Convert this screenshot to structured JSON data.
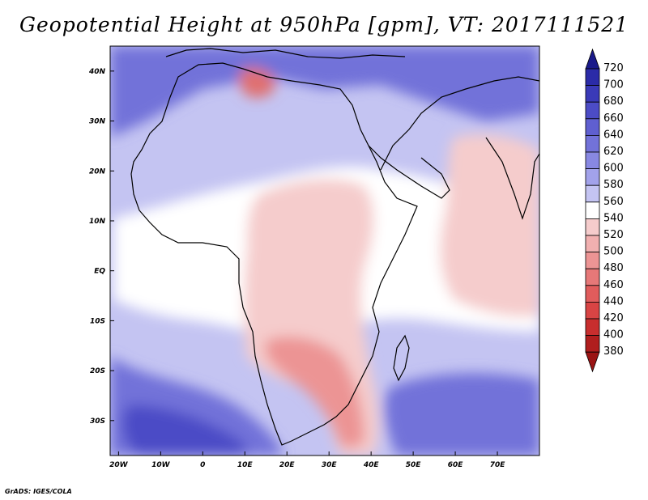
{
  "title": "Geopotential Height at 950hPa [gpm], VT: 2017111521",
  "credit": "GrADS: IGES/COLA",
  "map": {
    "lon_range": [
      -22,
      80
    ],
    "lat_range": [
      -37,
      45
    ],
    "lat_labels": [
      "40N",
      "30N",
      "20N",
      "10N",
      "EQ",
      "10S",
      "20S",
      "30S"
    ],
    "lat_values": [
      40,
      30,
      20,
      10,
      0,
      -10,
      -20,
      -30
    ],
    "lon_labels": [
      "20W",
      "10W",
      "0",
      "10E",
      "20E",
      "30E",
      "40E",
      "50E",
      "60E",
      "70E"
    ],
    "lon_values": [
      -20,
      -10,
      0,
      10,
      20,
      30,
      40,
      50,
      60,
      70
    ]
  },
  "colorbar": {
    "levels": [
      720,
      700,
      680,
      660,
      640,
      620,
      600,
      580,
      560,
      540,
      520,
      500,
      480,
      460,
      440,
      420,
      400,
      380
    ],
    "colors": [
      "#1f1f96",
      "#2b2ba8",
      "#3a3ab8",
      "#4c4cc6",
      "#5f5fd0",
      "#7272d9",
      "#8888e2",
      "#a2a2ea",
      "#c4c4f2",
      "#ffffff",
      "#f5cccc",
      "#f1b0b0",
      "#ec9494",
      "#e67878",
      "#e05c5c",
      "#d84444",
      "#c82e2e",
      "#b01e1e"
    ],
    "top_arrow": "#1a1a8a",
    "bottom_arrow": "#9a1414"
  },
  "field_colors": {
    "bg": "#c4c4f2",
    "deep_blue": "#4c4cc6",
    "mid_blue": "#7272d9",
    "light_blue": "#a2a2ea",
    "white": "#ffffff",
    "light_red": "#f5cccc",
    "mid_red": "#ec9494",
    "deep_red": "#e07070",
    "coast": "#000000"
  }
}
